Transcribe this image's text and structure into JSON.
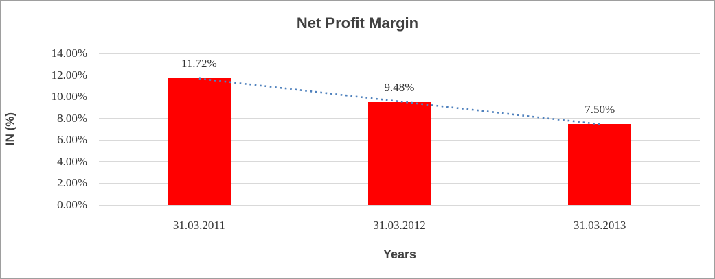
{
  "chart_data": {
    "type": "bar",
    "title": "Net Profit Margin",
    "xlabel": "Years",
    "ylabel": "IN (%)",
    "categories": [
      "31.03.2011",
      "31.03.2012",
      "31.03.2013"
    ],
    "series": [
      {
        "name": "Net Profit Margin",
        "values": [
          11.72,
          9.48,
          7.5
        ]
      }
    ],
    "data_labels": [
      "11.72%",
      "9.48%",
      "7.50%"
    ],
    "ylim": [
      0,
      14
    ],
    "ytick_step": 2,
    "ytick_labels": [
      "0.00%",
      "2.00%",
      "4.00%",
      "6.00%",
      "8.00%",
      "10.00%",
      "12.00%",
      "14.00%"
    ],
    "grid": true,
    "legend": "none",
    "trendline": {
      "type": "linear",
      "style": "dotted"
    }
  },
  "style": {
    "bar_color": "#ff0000",
    "trendline_color": "#4f81bd",
    "gridline_color": "#d9d9d9",
    "title_color": "#404040",
    "label_color": "#333333",
    "border_color": "#9e9e9e",
    "background": "#ffffff"
  }
}
